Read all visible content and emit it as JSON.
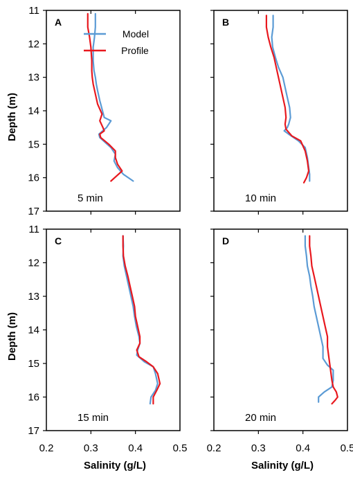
{
  "figure": {
    "y_axis_label": "Depth (m)",
    "x_axis_label": "Salinity (g/L)"
  },
  "legend": {
    "model_label": "Model",
    "profile_label": "Profile",
    "model_color": "#5b9bd5",
    "profile_color": "#e8181e"
  },
  "chart_data": [
    {
      "type": "line",
      "panel": "A",
      "annotation": "5 min",
      "xlim": [
        0.2,
        0.5
      ],
      "ylim": [
        17,
        11
      ],
      "y_ticks": [
        "11",
        "12",
        "13",
        "14",
        "15",
        "16",
        "17"
      ],
      "x_ticks": [],
      "series": [
        {
          "name": "Model",
          "color": "#5b9bd5",
          "x": [
            0.31,
            0.31,
            0.308,
            0.305,
            0.305,
            0.307,
            0.31,
            0.312,
            0.315,
            0.32,
            0.322,
            0.33,
            0.345,
            0.335,
            0.318,
            0.32,
            0.345,
            0.355,
            0.352,
            0.36,
            0.373,
            0.395
          ],
          "y": [
            11.1,
            11.5,
            11.8,
            12.1,
            12.5,
            12.8,
            13.0,
            13.2,
            13.4,
            13.7,
            13.8,
            14.2,
            14.3,
            14.5,
            14.7,
            14.8,
            15.1,
            15.3,
            15.5,
            15.7,
            15.9,
            16.1
          ]
        },
        {
          "name": "Profile",
          "color": "#e8181e",
          "x": [
            0.293,
            0.293,
            0.297,
            0.3,
            0.302,
            0.302,
            0.303,
            0.305,
            0.31,
            0.315,
            0.325,
            0.32,
            0.327,
            0.33,
            0.32,
            0.322,
            0.34,
            0.355,
            0.355,
            0.36,
            0.37,
            0.345
          ],
          "y": [
            11.1,
            11.5,
            11.8,
            12.1,
            12.5,
            12.8,
            13.0,
            13.2,
            13.5,
            13.8,
            14.1,
            14.3,
            14.5,
            14.6,
            14.7,
            14.8,
            15.0,
            15.2,
            15.4,
            15.6,
            15.8,
            16.1
          ]
        }
      ]
    },
    {
      "type": "line",
      "panel": "B",
      "annotation": "10 min",
      "xlim": [
        0.2,
        0.5
      ],
      "ylim": [
        17,
        11
      ],
      "y_ticks": [],
      "x_ticks": [],
      "series": [
        {
          "name": "Model",
          "color": "#5b9bd5",
          "x": [
            0.333,
            0.333,
            0.33,
            0.332,
            0.338,
            0.345,
            0.355,
            0.36,
            0.365,
            0.37,
            0.372,
            0.368,
            0.365,
            0.358,
            0.368,
            0.39,
            0.405,
            0.41,
            0.413,
            0.415,
            0.415
          ],
          "y": [
            11.15,
            11.5,
            11.8,
            12.1,
            12.4,
            12.7,
            13.0,
            13.3,
            13.6,
            13.9,
            14.2,
            14.4,
            14.5,
            14.6,
            14.7,
            14.9,
            15.1,
            15.4,
            15.7,
            15.9,
            16.1
          ]
        },
        {
          "name": "Profile",
          "color": "#e8181e",
          "x": [
            0.318,
            0.318,
            0.322,
            0.328,
            0.335,
            0.34,
            0.345,
            0.35,
            0.355,
            0.36,
            0.362,
            0.36,
            0.362,
            0.375,
            0.395,
            0.405,
            0.41,
            0.413,
            0.408,
            0.402
          ],
          "y": [
            11.15,
            11.5,
            11.8,
            12.1,
            12.4,
            12.7,
            13.0,
            13.3,
            13.6,
            13.9,
            14.2,
            14.4,
            14.55,
            14.75,
            14.9,
            15.2,
            15.5,
            15.8,
            16.0,
            16.15
          ]
        }
      ]
    },
    {
      "type": "line",
      "panel": "C",
      "annotation": "15 min",
      "xlim": [
        0.2,
        0.5
      ],
      "ylim": [
        17,
        11
      ],
      "y_ticks": [
        "11",
        "12",
        "13",
        "14",
        "15",
        "16",
        "17"
      ],
      "x_ticks": [
        "0.2",
        "0.3",
        "0.4",
        "0.5"
      ],
      "series": [
        {
          "name": "Model",
          "color": "#5b9bd5",
          "x": [
            0.372,
            0.373,
            0.372,
            0.375,
            0.38,
            0.385,
            0.39,
            0.395,
            0.398,
            0.402,
            0.408,
            0.41,
            0.405,
            0.403,
            0.42,
            0.44,
            0.445,
            0.45,
            0.445,
            0.435,
            0.433
          ],
          "y": [
            11.2,
            11.5,
            11.8,
            12.1,
            12.4,
            12.7,
            13.0,
            13.3,
            13.6,
            13.9,
            14.2,
            14.4,
            14.6,
            14.75,
            14.95,
            15.1,
            15.3,
            15.6,
            15.8,
            16.0,
            16.2
          ]
        },
        {
          "name": "Profile",
          "color": "#e8181e",
          "x": [
            0.372,
            0.372,
            0.373,
            0.377,
            0.383,
            0.388,
            0.393,
            0.398,
            0.4,
            0.405,
            0.41,
            0.41,
            0.403,
            0.408,
            0.425,
            0.44,
            0.45,
            0.455,
            0.448,
            0.44,
            0.44
          ],
          "y": [
            11.2,
            11.5,
            11.8,
            12.1,
            12.4,
            12.7,
            13.0,
            13.3,
            13.6,
            13.9,
            14.2,
            14.4,
            14.6,
            14.8,
            14.95,
            15.1,
            15.3,
            15.6,
            15.8,
            16.0,
            16.2
          ]
        }
      ]
    },
    {
      "type": "line",
      "panel": "D",
      "annotation": "20 min",
      "xlim": [
        0.2,
        0.5
      ],
      "ylim": [
        17,
        11
      ],
      "y_ticks": [],
      "x_ticks": [
        "0.2",
        "0.3",
        "0.4",
        "0.5"
      ],
      "series": [
        {
          "name": "Model",
          "color": "#5b9bd5",
          "x": [
            0.405,
            0.405,
            0.408,
            0.41,
            0.415,
            0.418,
            0.422,
            0.425,
            0.43,
            0.435,
            0.44,
            0.445,
            0.445,
            0.445,
            0.455,
            0.468,
            0.468,
            0.465,
            0.448,
            0.435,
            0.435
          ],
          "y": [
            11.2,
            11.5,
            11.8,
            12.1,
            12.4,
            12.7,
            13.0,
            13.3,
            13.6,
            13.9,
            14.2,
            14.5,
            14.7,
            14.85,
            15.05,
            15.2,
            15.5,
            15.7,
            15.85,
            16.0,
            16.15
          ]
        },
        {
          "name": "Profile",
          "color": "#e8181e",
          "x": [
            0.415,
            0.415,
            0.418,
            0.42,
            0.425,
            0.43,
            0.435,
            0.44,
            0.445,
            0.45,
            0.455,
            0.455,
            0.458,
            0.46,
            0.462,
            0.465,
            0.468,
            0.475,
            0.478,
            0.472,
            0.465
          ],
          "y": [
            11.2,
            11.5,
            11.8,
            12.1,
            12.4,
            12.7,
            13.0,
            13.3,
            13.6,
            13.9,
            14.2,
            14.5,
            14.8,
            15.0,
            15.2,
            15.5,
            15.7,
            15.85,
            16.0,
            16.1,
            16.2
          ]
        }
      ]
    }
  ]
}
